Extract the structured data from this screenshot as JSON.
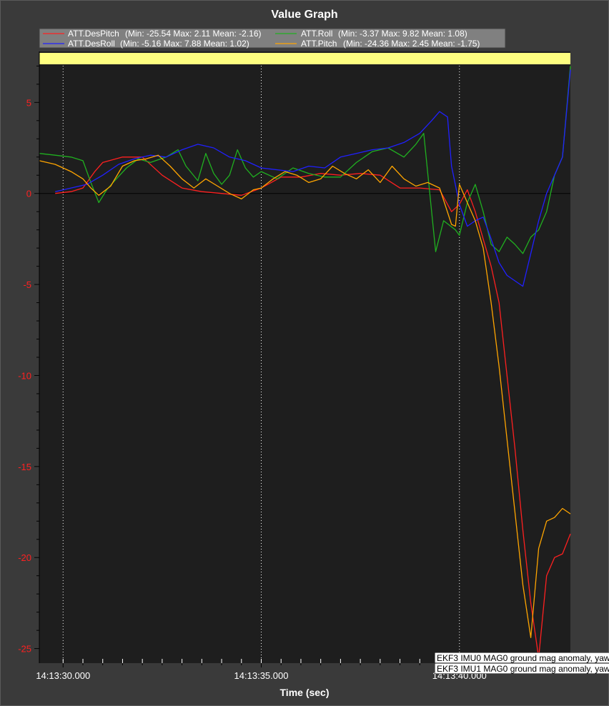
{
  "chart_data": {
    "type": "line",
    "title": "Value Graph",
    "xlabel": "Time (sec)",
    "ylabel": "",
    "xlim": [
      29.4,
      42.8
    ],
    "ylim": [
      -25.8,
      7.8
    ],
    "x_ticks": [
      {
        "value": 30.0,
        "label": "14:13:30.000"
      },
      {
        "value": 35.0,
        "label": "14:13:35.000"
      },
      {
        "value": 40.0,
        "label": "14:13:40.000"
      }
    ],
    "y_ticks": [
      {
        "value": 5,
        "label": "5"
      },
      {
        "value": 0,
        "label": "0"
      },
      {
        "value": -5,
        "label": "-5"
      },
      {
        "value": -10,
        "label": "-10"
      },
      {
        "value": -15,
        "label": "-15"
      },
      {
        "value": -20,
        "label": "-20"
      },
      {
        "value": -25,
        "label": "-25"
      }
    ],
    "legend": [
      {
        "name": "ATT.DesPitch",
        "stats": "(Min: -25.54 Max: 2.11 Mean: -2.16)",
        "color": "#ff2020"
      },
      {
        "name": "ATT.Roll",
        "stats": "(Min: -3.37 Max: 9.82 Mean: 1.08)",
        "color": "#20b020"
      },
      {
        "name": "ATT.DesRoll",
        "stats": "(Min: -5.16 Max: 7.88 Mean: 1.02)",
        "color": "#2020ff"
      },
      {
        "name": "ATT.Pitch",
        "stats": "(Min: -24.36 Max: 2.45 Mean: -1.75)",
        "color": "#ffa500"
      }
    ],
    "event_markers": [
      30.0,
      35.0,
      40.0
    ],
    "series": [
      {
        "name": "ATT.DesPitch",
        "color": "#ff2020",
        "x": [
          29.8,
          30.2,
          30.5,
          30.8,
          31.0,
          31.5,
          32.0,
          32.5,
          33.0,
          33.5,
          34.0,
          34.5,
          35.0,
          35.5,
          36.0,
          36.5,
          37.0,
          37.5,
          38.0,
          38.5,
          39.0,
          39.5,
          39.8,
          40.0,
          40.2,
          40.4,
          40.6,
          40.8,
          41.0,
          41.2,
          41.4,
          41.6,
          41.8,
          42.0,
          42.2,
          42.4,
          42.6,
          42.8
        ],
        "y": [
          0.0,
          0.1,
          0.3,
          1.2,
          1.7,
          2.0,
          2.0,
          1.0,
          0.3,
          0.1,
          0.0,
          -0.1,
          0.3,
          0.9,
          0.9,
          1.1,
          1.0,
          1.1,
          1.0,
          0.3,
          0.3,
          0.2,
          -1.0,
          -0.6,
          0.2,
          -1.0,
          -2.5,
          -4.0,
          -6.0,
          -10.0,
          -14.0,
          -18.5,
          -22.5,
          -25.5,
          -21.0,
          -20.0,
          -19.8,
          -18.7
        ]
      },
      {
        "name": "ATT.Roll",
        "color": "#20b020",
        "x": [
          29.4,
          29.8,
          30.2,
          30.5,
          30.7,
          30.9,
          31.1,
          31.3,
          31.6,
          31.9,
          32.2,
          32.6,
          32.9,
          33.1,
          33.4,
          33.6,
          33.8,
          34.0,
          34.2,
          34.4,
          34.6,
          34.8,
          35.0,
          35.4,
          35.8,
          36.2,
          36.6,
          37.0,
          37.4,
          37.8,
          38.2,
          38.6,
          38.9,
          39.1,
          39.4,
          39.6,
          39.9,
          40.0,
          40.2,
          40.4,
          40.6,
          40.8,
          41.0,
          41.2,
          41.4,
          41.6,
          41.8,
          42.0,
          42.2,
          42.4,
          42.6,
          42.8
        ],
        "y": [
          2.2,
          2.1,
          2.0,
          1.8,
          0.6,
          -0.5,
          0.2,
          0.7,
          1.4,
          1.9,
          1.7,
          2.0,
          2.4,
          1.5,
          0.7,
          2.2,
          1.1,
          0.5,
          1.0,
          2.4,
          1.4,
          0.9,
          1.2,
          0.8,
          1.4,
          1.1,
          0.9,
          0.9,
          1.7,
          2.3,
          2.5,
          2.0,
          2.7,
          3.3,
          -3.2,
          -1.5,
          -2.0,
          -2.3,
          -0.5,
          0.5,
          -1.0,
          -2.8,
          -3.2,
          -2.4,
          -2.8,
          -3.3,
          -2.4,
          -2.0,
          -1.0,
          1.0,
          2.0,
          7.0
        ]
      },
      {
        "name": "ATT.DesRoll",
        "color": "#2020ff",
        "x": [
          29.8,
          30.2,
          30.6,
          31.0,
          31.4,
          31.8,
          32.2,
          32.6,
          33.0,
          33.4,
          33.8,
          34.2,
          34.6,
          35.0,
          35.4,
          35.8,
          36.2,
          36.6,
          37.0,
          37.4,
          37.8,
          38.2,
          38.6,
          39.0,
          39.3,
          39.5,
          39.7,
          39.8,
          40.0,
          40.2,
          40.4,
          40.6,
          40.8,
          41.0,
          41.2,
          41.4,
          41.6,
          41.8,
          42.0,
          42.2,
          42.4,
          42.6,
          42.8
        ],
        "y": [
          0.1,
          0.3,
          0.5,
          1.0,
          1.6,
          1.9,
          2.1,
          2.0,
          2.4,
          2.7,
          2.5,
          2.0,
          1.8,
          1.4,
          1.3,
          1.2,
          1.5,
          1.4,
          2.0,
          2.2,
          2.4,
          2.5,
          2.8,
          3.3,
          4.0,
          4.5,
          4.2,
          1.5,
          -0.6,
          -1.8,
          -1.5,
          -1.3,
          -2.5,
          -3.8,
          -4.5,
          -4.8,
          -5.1,
          -3.3,
          -1.5,
          0.0,
          1.0,
          2.0,
          6.8
        ]
      },
      {
        "name": "ATT.Pitch",
        "color": "#ffa500",
        "x": [
          29.4,
          29.8,
          30.2,
          30.5,
          30.7,
          30.9,
          31.2,
          31.5,
          31.8,
          32.1,
          32.4,
          32.7,
          33.0,
          33.3,
          33.6,
          33.9,
          34.2,
          34.5,
          34.8,
          35.0,
          35.3,
          35.6,
          35.9,
          36.2,
          36.5,
          36.8,
          37.1,
          37.4,
          37.7,
          38.0,
          38.3,
          38.6,
          38.9,
          39.2,
          39.5,
          39.8,
          39.9,
          40.0,
          40.2,
          40.4,
          40.6,
          40.8,
          41.0,
          41.2,
          41.4,
          41.6,
          41.8,
          42.0,
          42.2,
          42.4,
          42.6,
          42.8
        ],
        "y": [
          1.8,
          1.6,
          1.2,
          0.8,
          0.3,
          -0.1,
          0.4,
          1.5,
          1.8,
          1.9,
          2.1,
          1.5,
          0.8,
          0.3,
          0.8,
          0.4,
          0.0,
          -0.3,
          0.2,
          0.3,
          0.8,
          1.2,
          1.0,
          0.6,
          0.8,
          1.5,
          1.1,
          0.8,
          1.3,
          0.6,
          1.5,
          0.8,
          0.4,
          0.6,
          0.3,
          -1.7,
          -1.8,
          0.5,
          -0.5,
          -1.5,
          -3.0,
          -6.0,
          -9.5,
          -13.5,
          -17.5,
          -21.5,
          -24.4,
          -19.5,
          -18.0,
          -17.8,
          -17.3,
          -17.6
        ]
      }
    ],
    "annotations": [
      "EKF3 IMU0 MAG0 ground mag anomaly, yaw",
      "EKF3 IMU1 MAG0 ground mag anomaly, yaw"
    ]
  },
  "colors": {
    "background": "#3a3a3a",
    "plot_background": "#1e1e1e",
    "highlight_band": "#ffff80",
    "zero_line": "#000000",
    "tick_label_y": "#ff2020",
    "tick_label_x": "#ffffff"
  }
}
